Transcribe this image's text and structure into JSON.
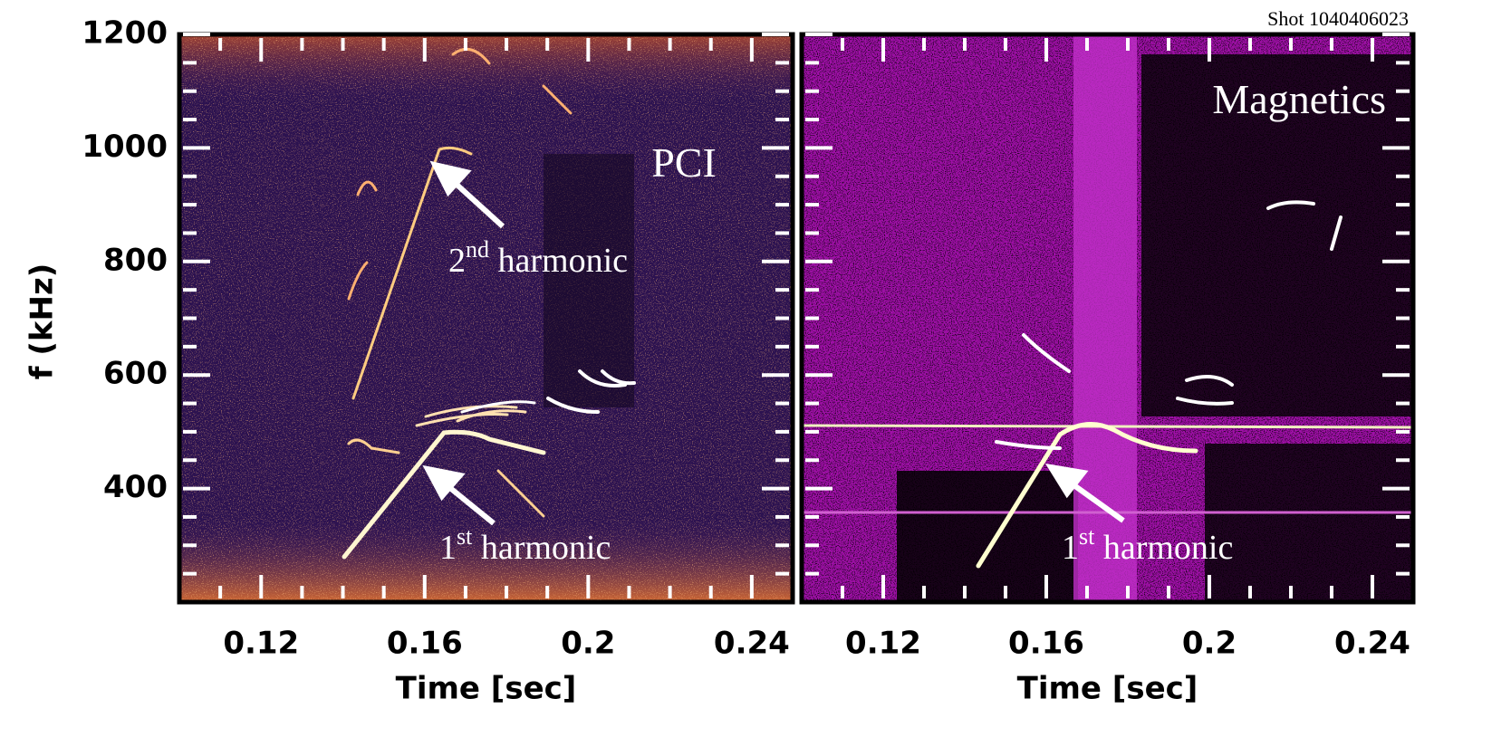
{
  "title": "Shot 1040406023",
  "chart_data": [
    {
      "type": "spectrogram",
      "label": "PCI",
      "xlabel": "Time [sec]",
      "ylabel": "f (kHz)",
      "xlim": [
        0.1,
        0.25
      ],
      "ylim": [
        200,
        1200
      ],
      "xticks": [
        0.12,
        0.16,
        0.2,
        0.24
      ],
      "yticks": [
        400,
        600,
        800,
        1000,
        1200
      ],
      "xminorticks": [
        0.11,
        0.13,
        0.14,
        0.15,
        0.17,
        0.18,
        0.19,
        0.21,
        0.22,
        0.23
      ],
      "yminorticks": [
        250,
        300,
        350,
        450,
        500,
        550,
        650,
        700,
        750,
        850,
        900,
        950,
        1050,
        1100,
        1150
      ],
      "annotations": [
        {
          "prefix": "2",
          "sup": "nd",
          "suffix": " harmonic"
        },
        {
          "prefix": "1",
          "sup": "st",
          "suffix": " harmonic"
        }
      ]
    },
    {
      "type": "spectrogram",
      "label": "Magnetics",
      "xlabel": "Time [sec]",
      "xlim": [
        0.1,
        0.25
      ],
      "ylim": [
        200,
        1200
      ],
      "xticks": [
        0.12,
        0.16,
        0.2,
        0.24
      ],
      "yticks": [
        400,
        600,
        800,
        1000,
        1200
      ],
      "xminorticks": [
        0.11,
        0.13,
        0.14,
        0.15,
        0.17,
        0.18,
        0.19,
        0.21,
        0.22,
        0.23
      ],
      "yminorticks": [
        250,
        300,
        350,
        450,
        500,
        550,
        650,
        700,
        750,
        850,
        900,
        950,
        1050,
        1100,
        1150
      ],
      "annotations": [
        {
          "prefix": "1",
          "sup": "st",
          "suffix": " harmonic"
        }
      ]
    }
  ]
}
